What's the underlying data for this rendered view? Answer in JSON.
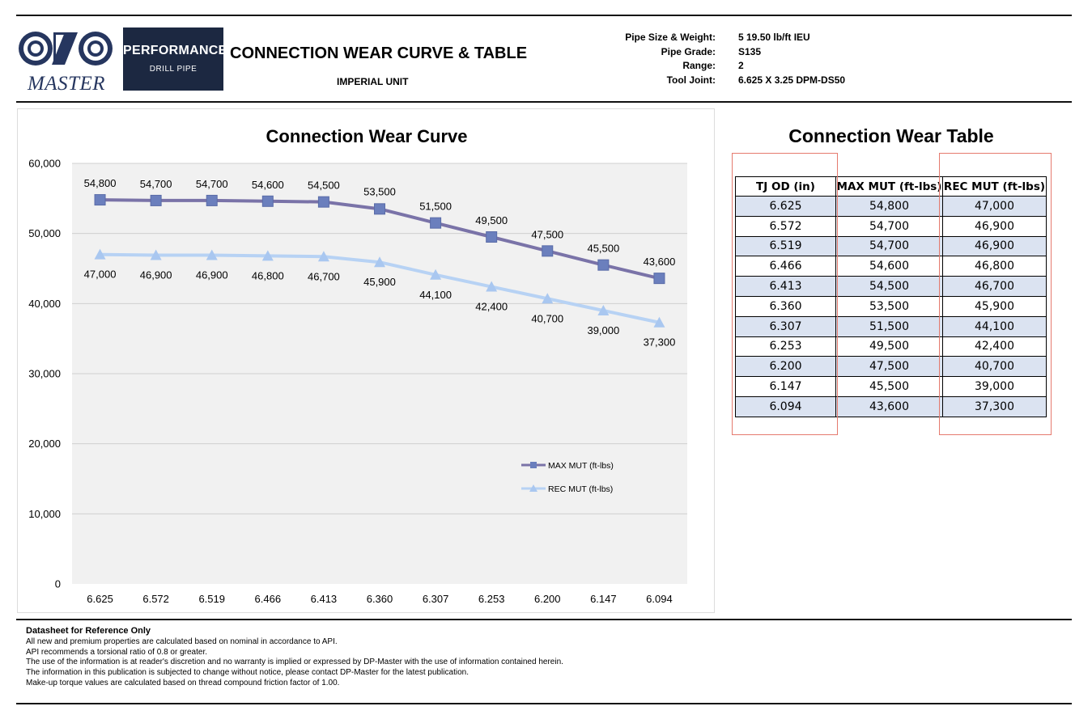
{
  "header": {
    "logo_text": "MASTER",
    "badge_title": "PERFORMANCE",
    "badge_subtitle": "DRILL PIPE",
    "document_title": "CONNECTION WEAR CURVE & TABLE",
    "unit_label": "IMPERIAL UNIT",
    "specs": [
      {
        "label": "Pipe Size & Weight:",
        "value": "5 19.50 lb/ft IEU"
      },
      {
        "label": "Pipe Grade:",
        "value": "S135"
      },
      {
        "label": "Range:",
        "value": "2"
      },
      {
        "label": "Tool Joint:",
        "value": "6.625 X 3.25 DPM-DS50"
      }
    ]
  },
  "chart_data": {
    "type": "line",
    "title": "Connection Wear Curve",
    "xlabel": "",
    "ylabel": "",
    "categories": [
      "6.625",
      "6.572",
      "6.519",
      "6.466",
      "6.413",
      "6.360",
      "6.307",
      "6.253",
      "6.200",
      "6.147",
      "6.094"
    ],
    "series": [
      {
        "name": "MAX MUT (ft-lbs)",
        "values": [
          54800,
          54700,
          54700,
          54600,
          54500,
          53500,
          51500,
          49500,
          47500,
          45500,
          43600
        ],
        "color": "#6b7fbd",
        "line_color": "#7a73a8",
        "marker": "square"
      },
      {
        "name": "REC MUT (ft-lbs)",
        "values": [
          47000,
          46900,
          46900,
          46800,
          46700,
          45900,
          44100,
          42400,
          40700,
          39000,
          37300
        ],
        "color": "#a9c7f0",
        "line_color": "#b7d2f4",
        "marker": "triangle"
      }
    ],
    "yticks": [
      "0",
      "10,000",
      "20,000",
      "30,000",
      "40,000",
      "50,000",
      "60,000"
    ],
    "ylim": [
      0,
      60000
    ],
    "grid": true,
    "legend_position": "right",
    "data_labels": true,
    "plot_background": "#f1f1f1"
  },
  "table": {
    "title": "Connection Wear Table",
    "headers": [
      "TJ OD (in)",
      "MAX MUT (ft-lbs)",
      "REC MUT (ft-lbs)"
    ],
    "rows": [
      [
        "6.625",
        "54,800",
        "47,000"
      ],
      [
        "6.572",
        "54,700",
        "46,900"
      ],
      [
        "6.519",
        "54,700",
        "46,900"
      ],
      [
        "6.466",
        "54,600",
        "46,800"
      ],
      [
        "6.413",
        "54,500",
        "46,700"
      ],
      [
        "6.360",
        "53,500",
        "45,900"
      ],
      [
        "6.307",
        "51,500",
        "44,100"
      ],
      [
        "6.253",
        "49,500",
        "42,400"
      ],
      [
        "6.200",
        "47,500",
        "40,700"
      ],
      [
        "6.147",
        "45,500",
        "39,000"
      ],
      [
        "6.094",
        "43,600",
        "37,300"
      ]
    ],
    "stripe_color": "#dbe3f1",
    "highlight_color": "#e57a6e"
  },
  "footer": {
    "heading": "Datasheet for Reference Only",
    "lines": [
      "All new and premium properties are calculated based on nominal in accordance to  API.",
      "API recommends a torsional ratio of 0.8 or greater.",
      "The use of the information is at reader's  discretion and  no warranty is implied or expressed by DP-Master with the use of information contained herein.",
      "The information in this publication is subjected to change without notice, please contact DP-Master for the latest publication.",
      "Make-up torque values are calculated based on thread compound friction factor of 1.00."
    ]
  }
}
